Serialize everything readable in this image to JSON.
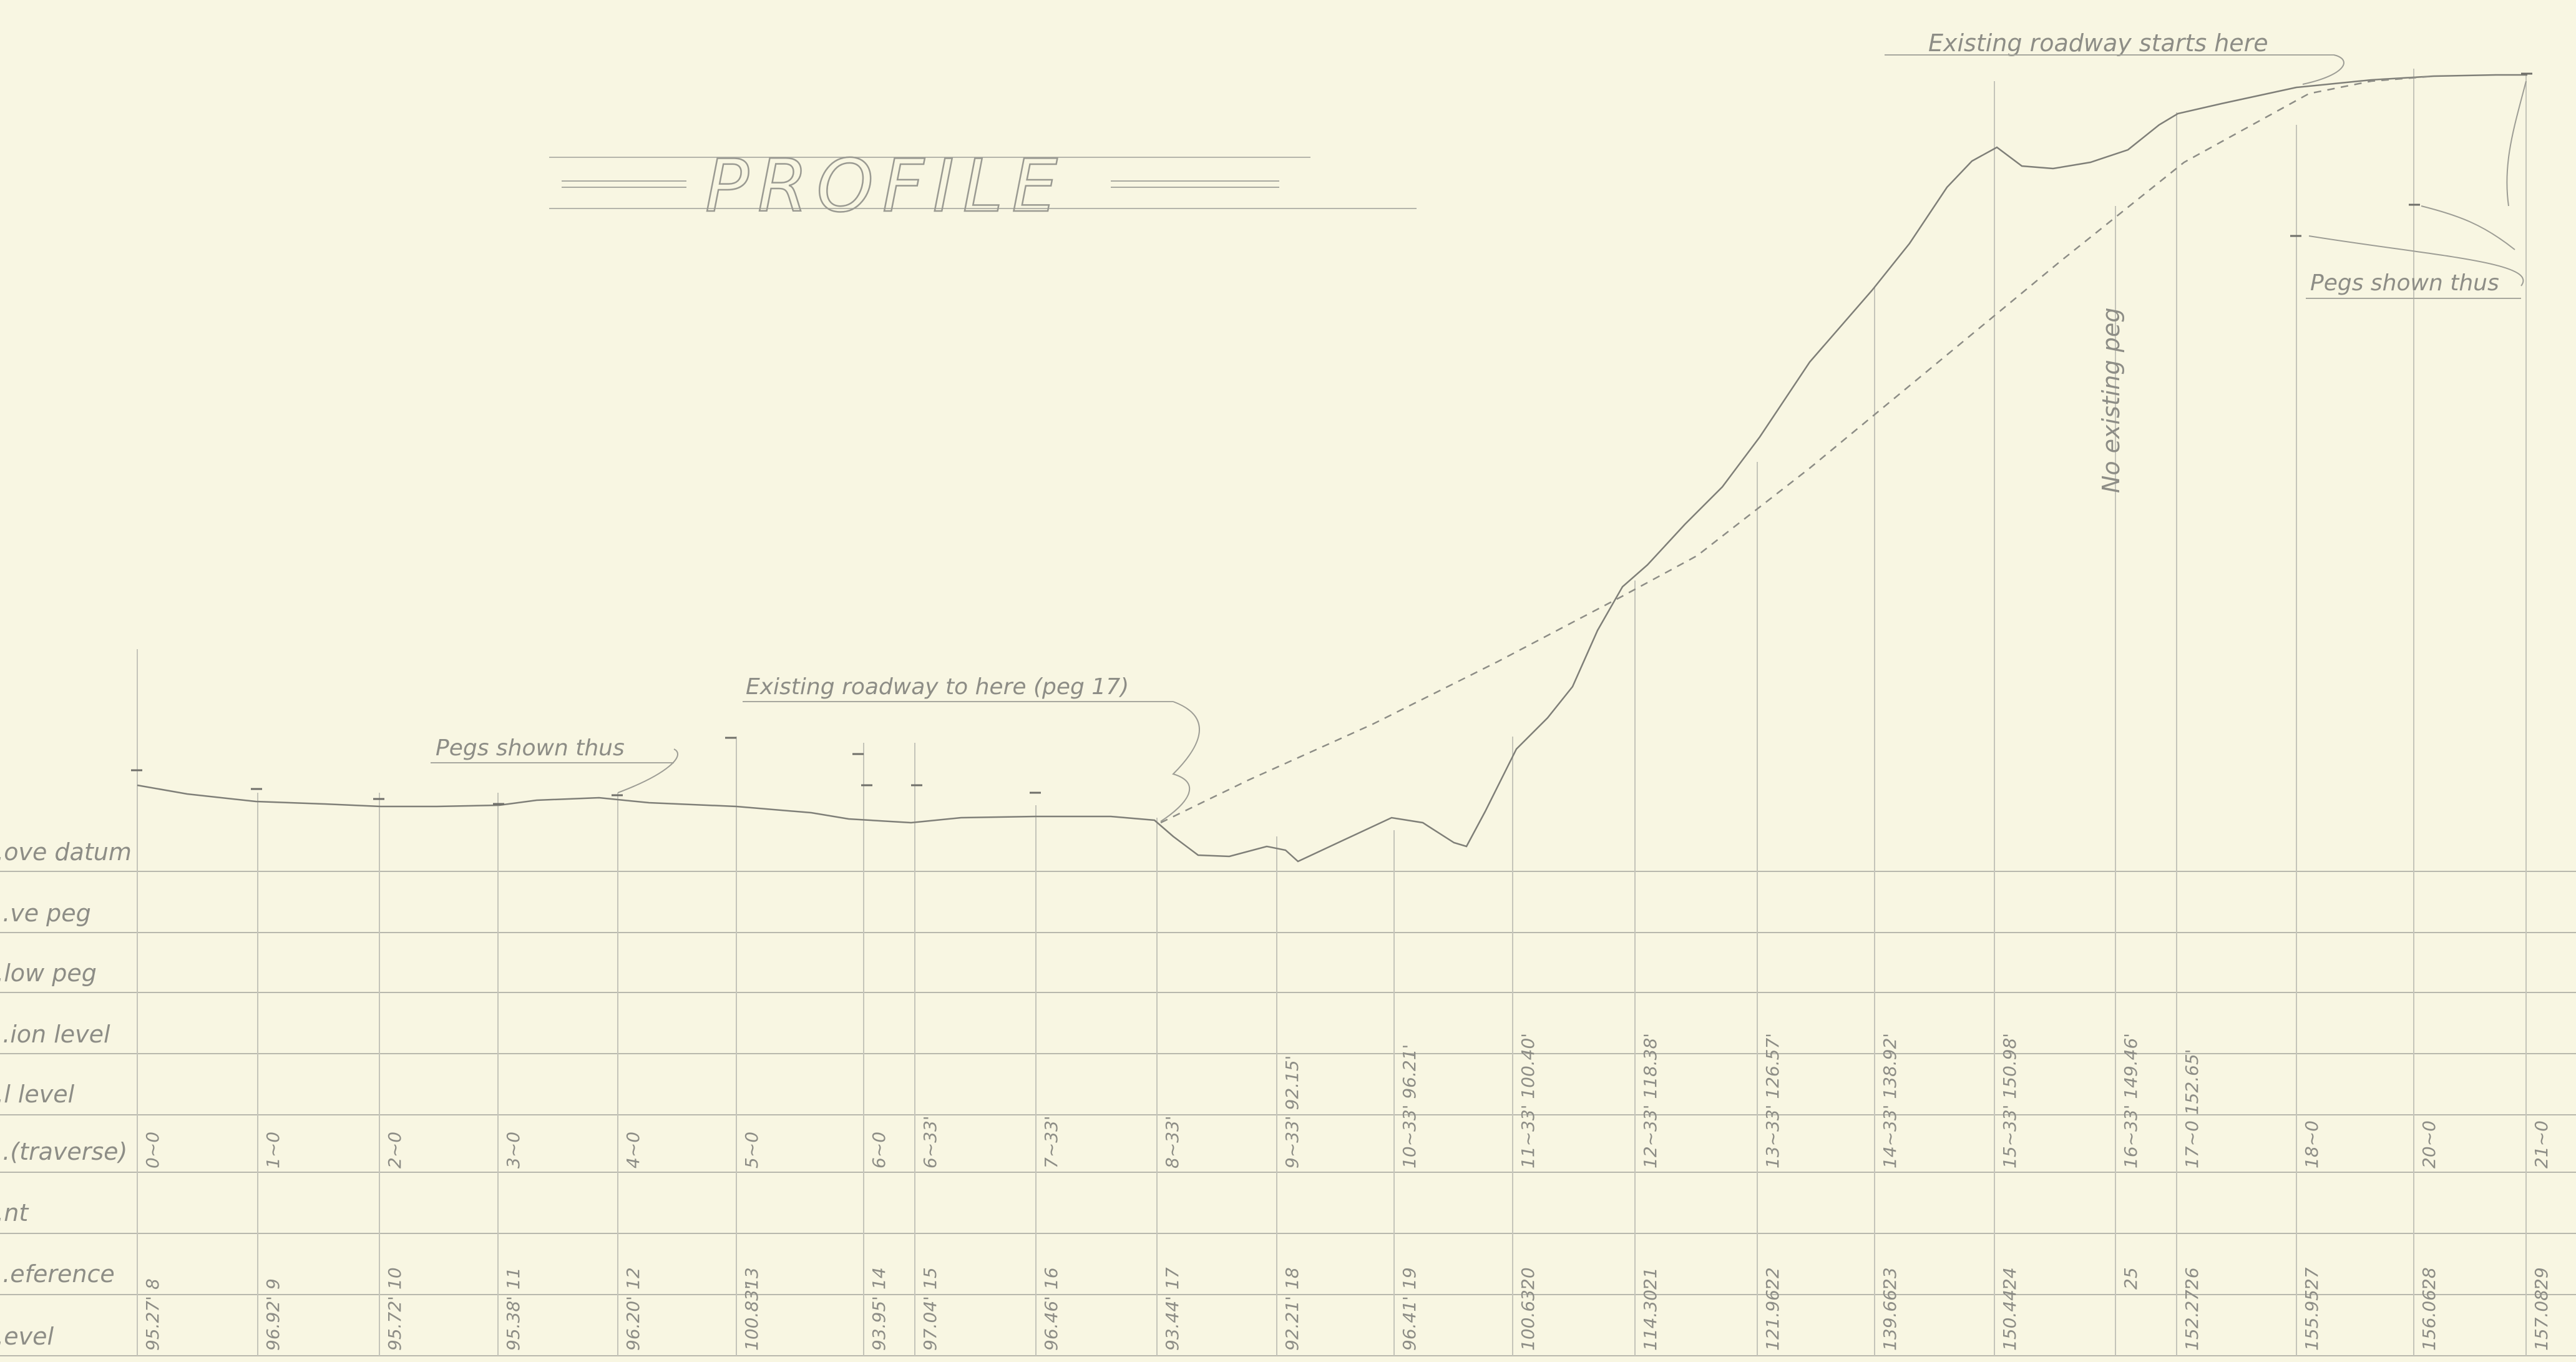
{
  "title": "PROFILE",
  "annotations": {
    "existing_starts": "Existing roadway starts here",
    "existing_to_here": "Existing roadway to here (peg 17)",
    "pegs_shown_left": "Pegs shown thus",
    "pegs_shown_right": "Pegs shown thus",
    "no_existing_peg": "No existing peg"
  },
  "row_labels": [
    "...ove datum",
    "...ve peg",
    "...low peg",
    "...ion level",
    "...l level",
    "...(traverse)",
    "...nt",
    "...eference",
    "...evel"
  ],
  "stations": [
    {
      "chainage": "0~0",
      "peg": "8",
      "rl": "95.27'"
    },
    {
      "chainage": "1~0",
      "peg": "9",
      "rl": "96.92'"
    },
    {
      "chainage": "2~0",
      "peg": "10",
      "rl": "95.72'"
    },
    {
      "chainage": "3~0",
      "peg": "11",
      "rl": "95.38'"
    },
    {
      "chainage": "4~0",
      "peg": "12",
      "rl": "96.20'"
    },
    {
      "chainage": "5~0",
      "peg": "13",
      "rl": "100.83'"
    },
    {
      "chainage": "6~0",
      "peg": "14",
      "rl": "93.95'"
    },
    {
      "chainage": "6~33'",
      "peg": "15",
      "rl": "97.04'"
    },
    {
      "chainage": "7~33'",
      "peg": "16",
      "rl": "96.46'"
    },
    {
      "chainage": "8~33'",
      "peg": "17",
      "rl": "93.44'"
    },
    {
      "chainage": "9~33' 92.15'",
      "peg": "18",
      "rl": "92.21'"
    },
    {
      "chainage": "10~33' 96.21'",
      "peg": "19",
      "rl": "96.41'"
    },
    {
      "chainage": "11~33' 100.40'",
      "peg": "20",
      "rl": "100.63'"
    },
    {
      "chainage": "12~33' 118.38'",
      "peg": "21",
      "rl": "114.30'"
    },
    {
      "chainage": "13~33' 126.57'",
      "peg": "22",
      "rl": "121.96'"
    },
    {
      "chainage": "14~33' 138.92'",
      "peg": "23",
      "rl": "139.66'"
    },
    {
      "chainage": "15~33' 150.98'",
      "peg": "24",
      "rl": "150.44'"
    },
    {
      "chainage": "16~33' 149.46'",
      "peg": "25",
      "rl": ""
    },
    {
      "chainage": "17~0 152.65'",
      "peg": "26",
      "rl": "152.27'"
    },
    {
      "chainage": "18~0",
      "peg": "27",
      "rl": "155.95'"
    },
    {
      "chainage": "20~0",
      "peg": "28",
      "rl": "156.06'"
    },
    {
      "chainage": "21~0",
      "peg": "29",
      "rl": "157.08'"
    }
  ]
}
